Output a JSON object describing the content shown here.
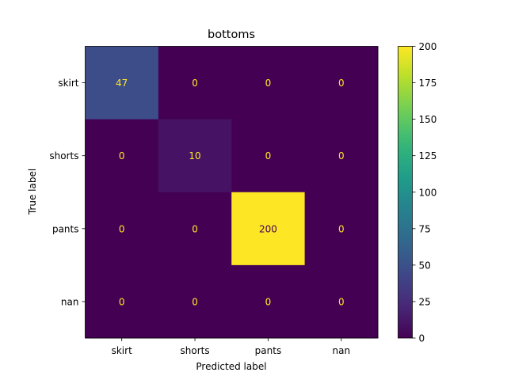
{
  "chart_data": {
    "type": "heatmap",
    "title": "bottoms",
    "xlabel": "Predicted label",
    "ylabel": "True label",
    "x_categories": [
      "skirt",
      "shorts",
      "pants",
      "nan"
    ],
    "y_categories": [
      "skirt",
      "shorts",
      "pants",
      "nan"
    ],
    "values": [
      [
        47,
        0,
        0,
        0
      ],
      [
        0,
        10,
        0,
        0
      ],
      [
        0,
        0,
        200,
        0
      ],
      [
        0,
        0,
        0,
        0
      ]
    ],
    "colormap": "viridis",
    "colorbar": {
      "vmin": 0,
      "vmax": 200,
      "ticks": [
        0,
        25,
        50,
        75,
        100,
        125,
        150,
        175,
        200
      ]
    },
    "grid": false
  }
}
